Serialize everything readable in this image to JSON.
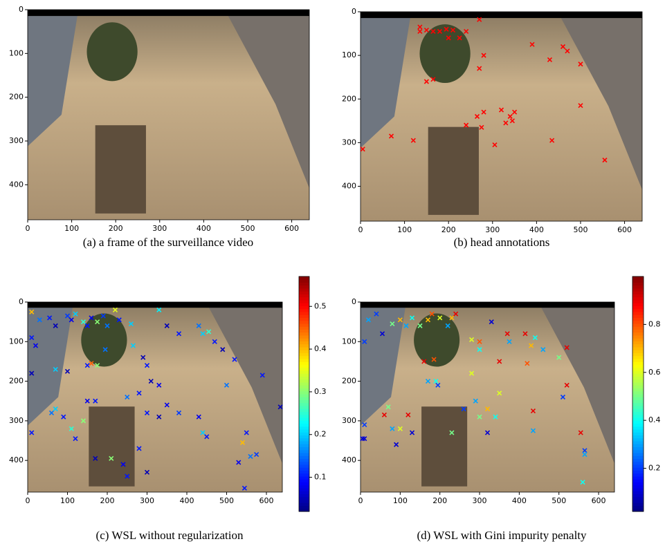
{
  "chart_data": [
    {
      "type": "image",
      "caption": "(a) a frame of the surveillance video",
      "xlim": [
        0,
        640
      ],
      "ylim": [
        480,
        0
      ],
      "xticks": [
        0,
        100,
        200,
        300,
        400,
        500,
        600
      ],
      "yticks": [
        0,
        100,
        200,
        300,
        400
      ]
    },
    {
      "type": "scatter",
      "caption": "(b) head annotations",
      "marker": "x",
      "color": "#ff0000",
      "xlim": [
        0,
        640
      ],
      "ylim": [
        480,
        0
      ],
      "xticks": [
        0,
        100,
        200,
        300,
        400,
        500,
        600
      ],
      "yticks": [
        0,
        100,
        200,
        300,
        400
      ],
      "x": [
        270,
        135,
        150,
        165,
        180,
        195,
        210,
        200,
        225,
        240,
        135,
        280,
        270,
        390,
        460,
        470,
        430,
        500,
        150,
        165,
        500,
        265,
        280,
        320,
        340,
        345,
        350,
        275,
        240,
        330,
        70,
        120,
        305,
        435,
        555,
        5
      ],
      "values": [
        18,
        35,
        42,
        45,
        45,
        40,
        42,
        60,
        60,
        45,
        45,
        100,
        130,
        75,
        80,
        90,
        110,
        120,
        160,
        155,
        215,
        240,
        230,
        225,
        240,
        250,
        230,
        265,
        260,
        255,
        285,
        295,
        305,
        295,
        340,
        315
      ]
    },
    {
      "type": "scatter",
      "caption": "(c) WSL without regularization",
      "marker": "x",
      "colormap": "jet",
      "xlim": [
        0,
        640
      ],
      "ylim": [
        480,
        0
      ],
      "xticks": [
        0,
        100,
        200,
        300,
        400,
        500,
        600
      ],
      "yticks": [
        0,
        100,
        200,
        300,
        400
      ],
      "clim": [
        0.02,
        0.57
      ],
      "cticks": [
        0.1,
        0.2,
        0.3,
        0.4,
        0.5
      ],
      "x": [
        10,
        30,
        55,
        70,
        100,
        110,
        120,
        140,
        150,
        160,
        175,
        190,
        200,
        220,
        230,
        260,
        330,
        350,
        380,
        430,
        440,
        455,
        470,
        490,
        520,
        10,
        20,
        10,
        70,
        100,
        150,
        160,
        175,
        150,
        170,
        195,
        265,
        290,
        300,
        310,
        280,
        250,
        330,
        300,
        330,
        350,
        380,
        430,
        440,
        450,
        500,
        590,
        635,
        10,
        60,
        70,
        90,
        110,
        140,
        120,
        170,
        210,
        240,
        250,
        300,
        280,
        540,
        550,
        560,
        530,
        545,
        575
      ],
      "values": [
        25,
        45,
        40,
        60,
        35,
        45,
        30,
        50,
        60,
        40,
        50,
        35,
        60,
        20,
        45,
        55,
        20,
        60,
        80,
        60,
        80,
        75,
        100,
        120,
        145,
        90,
        110,
        180,
        170,
        175,
        160,
        155,
        160,
        250,
        250,
        120,
        110,
        140,
        160,
        200,
        230,
        240,
        210,
        280,
        290,
        260,
        280,
        290,
        330,
        340,
        210,
        185,
        265,
        330,
        280,
        270,
        290,
        320,
        300,
        345,
        395,
        395,
        410,
        440,
        430,
        370,
        355,
        330,
        390,
        405,
        470,
        385
      ],
      "color_values": [
        0.4,
        0.15,
        0.1,
        0.05,
        0.12,
        0.08,
        0.2,
        0.25,
        0.1,
        0.08,
        0.3,
        0.12,
        0.15,
        0.35,
        0.1,
        0.2,
        0.22,
        0.05,
        0.1,
        0.15,
        0.2,
        0.25,
        0.1,
        0.05,
        0.1,
        0.1,
        0.08,
        0.05,
        0.2,
        0.05,
        0.1,
        0.45,
        0.3,
        0.08,
        0.1,
        0.15,
        0.2,
        0.05,
        0.1,
        0.05,
        0.1,
        0.15,
        0.08,
        0.1,
        0.05,
        0.08,
        0.12,
        0.08,
        0.2,
        0.1,
        0.15,
        0.1,
        0.05,
        0.1,
        0.15,
        0.2,
        0.1,
        0.25,
        0.3,
        0.1,
        0.05,
        0.3,
        0.08,
        0.1,
        0.05,
        0.1,
        0.4,
        0.1,
        0.15,
        0.08,
        0.1,
        0.12
      ]
    },
    {
      "type": "scatter",
      "caption": "(d) WSL with Gini impurity penalty",
      "marker": "x",
      "colormap": "jet",
      "xlim": [
        0,
        640
      ],
      "ylim": [
        480,
        0
      ],
      "xticks": [
        0,
        100,
        200,
        300,
        400,
        500,
        600
      ],
      "yticks": [
        0,
        100,
        200,
        300,
        400
      ],
      "clim": [
        0.02,
        1.0
      ],
      "cticks": [
        0.2,
        0.4,
        0.6,
        0.8
      ],
      "x": [
        20,
        40,
        55,
        80,
        100,
        115,
        130,
        150,
        170,
        180,
        200,
        220,
        230,
        240,
        280,
        300,
        300,
        330,
        370,
        375,
        415,
        440,
        430,
        460,
        520,
        500,
        10,
        160,
        185,
        170,
        190,
        195,
        280,
        350,
        420,
        520,
        510,
        350,
        290,
        300,
        320,
        340,
        260,
        70,
        60,
        80,
        100,
        120,
        130,
        10,
        10,
        230,
        320,
        435,
        435,
        555,
        565,
        565,
        560,
        5,
        90
      ],
      "values": [
        45,
        30,
        80,
        55,
        45,
        60,
        40,
        60,
        45,
        30,
        40,
        60,
        40,
        30,
        95,
        100,
        120,
        50,
        80,
        100,
        80,
        90,
        110,
        120,
        115,
        140,
        100,
        150,
        145,
        200,
        200,
        210,
        180,
        150,
        155,
        210,
        240,
        230,
        250,
        290,
        270,
        290,
        270,
        265,
        285,
        320,
        320,
        285,
        330,
        310,
        345,
        330,
        330,
        275,
        325,
        330,
        375,
        385,
        455,
        345,
        360
      ],
      "color_values": [
        0.3,
        0.2,
        0.1,
        0.5,
        0.7,
        0.3,
        0.4,
        0.5,
        0.7,
        0.8,
        0.6,
        0.3,
        0.7,
        0.9,
        0.6,
        0.8,
        0.4,
        0.1,
        0.9,
        0.3,
        0.9,
        0.4,
        0.7,
        0.3,
        0.9,
        0.5,
        0.2,
        0.9,
        0.8,
        0.3,
        0.4,
        0.2,
        0.6,
        0.9,
        0.8,
        0.9,
        0.2,
        0.6,
        0.3,
        0.5,
        0.7,
        0.4,
        0.2,
        0.5,
        0.9,
        0.3,
        0.6,
        0.9,
        0.1,
        0.2,
        0.1,
        0.5,
        0.1,
        0.9,
        0.3,
        0.9,
        0.2,
        0.3,
        0.4,
        0.1,
        0.1
      ]
    }
  ]
}
